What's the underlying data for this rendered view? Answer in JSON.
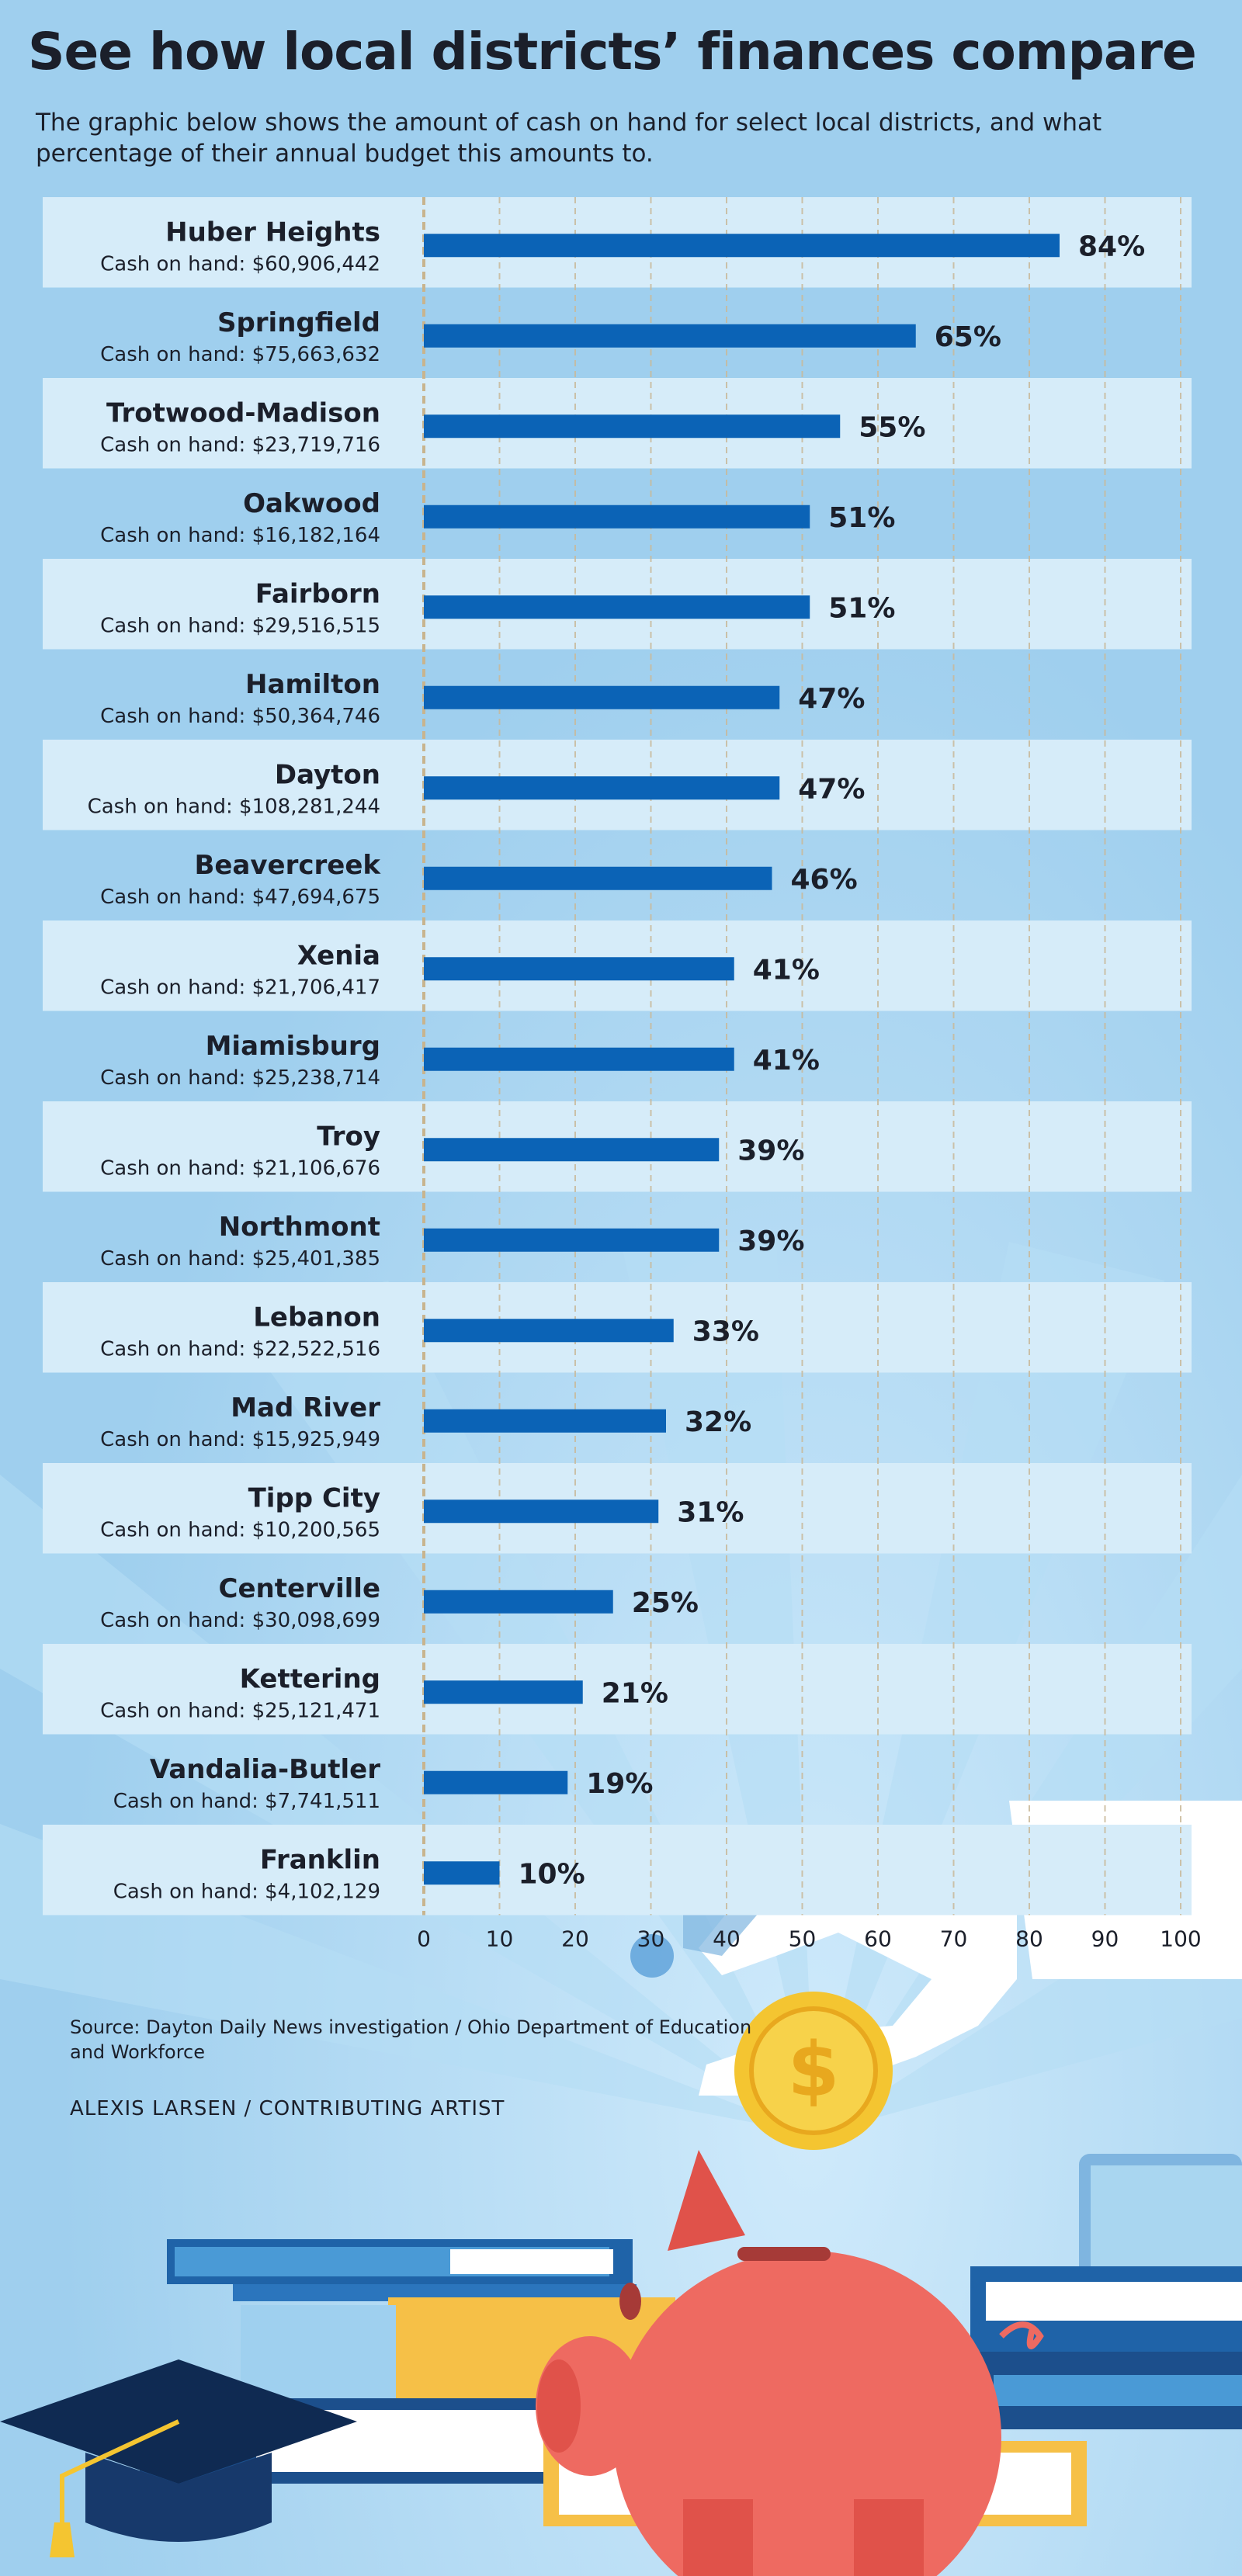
{
  "title": "See how local districts’ finances compare",
  "subtitle": "The graphic below shows the amount of cash on hand for select local districts, and what percentage of their annual budget this amounts to.",
  "source": "Source: Dayton Daily News investigation / Ohio Department of Education and Workforce",
  "credit": "ALEXIS LARSEN / CONTRIBUTING ARTIST",
  "colors": {
    "bar": "#0b63b6",
    "row_band": "#d6ecf9",
    "background": "#a9d6f0",
    "text": "#1b1f2a"
  },
  "chart_data": {
    "type": "bar",
    "orientation": "horizontal",
    "categories": [
      "Huber Heights",
      "Springfield",
      "Trotwood-Madison",
      "Oakwood",
      "Fairborn",
      "Hamilton",
      "Dayton",
      "Beavercreek",
      "Xenia",
      "Miamisburg",
      "Troy",
      "Northmont",
      "Lebanon",
      "Mad River",
      "Tipp City",
      "Centerville",
      "Kettering",
      "Vandalia-Butler",
      "Franklin"
    ],
    "sublabels": [
      "Cash on hand: $60,906,442",
      "Cash on hand: $75,663,632",
      "Cash on hand: $23,719,716",
      "Cash on hand: $16,182,164",
      "Cash on hand: $29,516,515",
      "Cash on hand: $50,364,746",
      "Cash on hand: $108,281,244",
      "Cash on hand: $47,694,675",
      "Cash on hand: $21,706,417",
      "Cash on hand: $25,238,714",
      "Cash on hand: $21,106,676",
      "Cash on hand: $25,401,385",
      "Cash on hand: $22,522,516",
      "Cash on hand: $15,925,949",
      "Cash on hand: $10,200,565",
      "Cash on hand: $30,098,699",
      "Cash on hand: $25,121,471",
      "Cash on hand: $7,741,511",
      "Cash on hand: $4,102,129"
    ],
    "values": [
      84,
      65,
      55,
      51,
      51,
      47,
      47,
      46,
      41,
      41,
      39,
      39,
      33,
      32,
      31,
      25,
      21,
      19,
      10
    ],
    "value_labels": [
      "84%",
      "65%",
      "55%",
      "51%",
      "51%",
      "47%",
      "47%",
      "46%",
      "41%",
      "41%",
      "39%",
      "39%",
      "33%",
      "32%",
      "31%",
      "25%",
      "21%",
      "19%",
      "10%"
    ],
    "xlim": [
      0,
      100
    ],
    "xticks": [
      "0",
      "10",
      "20",
      "30",
      "40",
      "50",
      "60",
      "70",
      "80",
      "90",
      "100"
    ],
    "grid": true,
    "legend": "none"
  }
}
